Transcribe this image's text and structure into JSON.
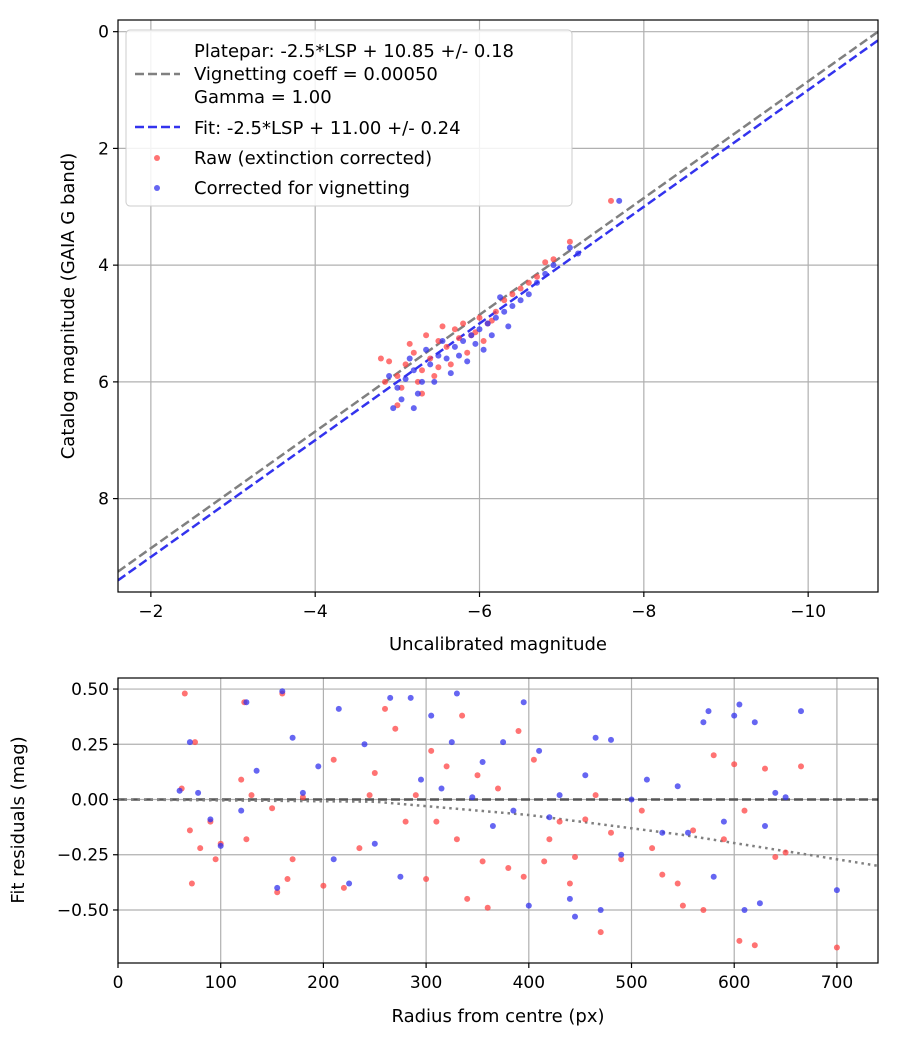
{
  "chart_data": [
    {
      "type": "scatter",
      "xlabel": "Uncalibrated magnitude",
      "ylabel": "Catalog magnitude (GAIA G band)",
      "xlim": [
        -1.6,
        -10.85
      ],
      "ylim": [
        9.6,
        -0.2
      ],
      "x_ticks": [
        -2,
        -4,
        -6,
        -8,
        -10
      ],
      "x_tick_labels": [
        "−2",
        "−4",
        "−6",
        "−8",
        "−10"
      ],
      "y_ticks": [
        0,
        2,
        4,
        6,
        8
      ],
      "y_tick_labels": [
        "0",
        "2",
        "4",
        "6",
        "8"
      ],
      "grid": true,
      "legend_position": "top-left",
      "lines": [
        {
          "name": "platepar",
          "style": "dashed",
          "color": "#808080",
          "slope": 1,
          "intercept": 10.85,
          "legend": [
            "Platepar: -2.5*LSP + 10.85 +/- 0.18",
            "Vignetting coeff = 0.00050",
            "Gamma = 1.00"
          ]
        },
        {
          "name": "fit",
          "style": "dashed",
          "color": "#3333ee",
          "slope": 1,
          "intercept": 11.0,
          "legend": [
            "Fit: -2.5*LSP + 11.00 +/- 0.24"
          ]
        }
      ],
      "series": [
        {
          "name": "Raw (extinction corrected)",
          "color": "#ff4444",
          "points": [
            [
              -4.8,
              5.6
            ],
            [
              -4.9,
              5.65
            ],
            [
              -5.0,
              5.9
            ],
            [
              -5.1,
              5.7
            ],
            [
              -5.2,
              5.5
            ],
            [
              -5.3,
              5.8
            ],
            [
              -5.4,
              5.6
            ],
            [
              -5.5,
              5.3
            ],
            [
              -5.6,
              5.4
            ],
            [
              -5.7,
              5.1
            ],
            [
              -5.8,
              5.0
            ],
            [
              -5.9,
              5.2
            ],
            [
              -6.0,
              4.9
            ],
            [
              -6.1,
              5.0
            ],
            [
              -6.2,
              4.8
            ],
            [
              -6.3,
              4.6
            ],
            [
              -6.5,
              4.4
            ],
            [
              -6.7,
              4.2
            ],
            [
              -6.9,
              3.9
            ],
            [
              -7.1,
              3.6
            ],
            [
              -7.6,
              2.9
            ],
            [
              -5.05,
              6.1
            ],
            [
              -5.25,
              6.0
            ],
            [
              -5.45,
              5.9
            ],
            [
              -5.65,
              5.7
            ],
            [
              -5.85,
              5.5
            ],
            [
              -6.05,
              5.3
            ],
            [
              -5.15,
              5.35
            ],
            [
              -5.35,
              5.2
            ],
            [
              -5.55,
              5.05
            ],
            [
              -6.4,
              4.5
            ],
            [
              -6.6,
              4.3
            ],
            [
              -6.8,
              3.95
            ],
            [
              -4.85,
              6.0
            ],
            [
              -5.75,
              5.25
            ],
            [
              -5.95,
              5.15
            ],
            [
              -6.15,
              4.95
            ],
            [
              -5.5,
              5.75
            ],
            [
              -5.3,
              6.2
            ],
            [
              -5.0,
              6.4
            ]
          ]
        },
        {
          "name": "Corrected for vignetting",
          "color": "#3333ee",
          "points": [
            [
              -4.9,
              5.9
            ],
            [
              -5.0,
              6.1
            ],
            [
              -5.1,
              5.95
            ],
            [
              -5.2,
              5.8
            ],
            [
              -5.3,
              6.0
            ],
            [
              -5.4,
              5.7
            ],
            [
              -5.5,
              5.55
            ],
            [
              -5.6,
              5.6
            ],
            [
              -5.7,
              5.4
            ],
            [
              -5.8,
              5.3
            ],
            [
              -5.9,
              5.2
            ],
            [
              -6.0,
              5.1
            ],
            [
              -6.1,
              5.0
            ],
            [
              -6.2,
              4.9
            ],
            [
              -6.3,
              4.8
            ],
            [
              -6.5,
              4.6
            ],
            [
              -6.7,
              4.3
            ],
            [
              -6.9,
              4.0
            ],
            [
              -7.1,
              3.7
            ],
            [
              -7.7,
              2.9
            ],
            [
              -5.05,
              6.3
            ],
            [
              -5.25,
              6.2
            ],
            [
              -5.45,
              6.0
            ],
            [
              -5.65,
              5.85
            ],
            [
              -5.85,
              5.65
            ],
            [
              -6.05,
              5.45
            ],
            [
              -5.15,
              5.6
            ],
            [
              -5.35,
              5.45
            ],
            [
              -5.55,
              5.3
            ],
            [
              -6.4,
              4.7
            ],
            [
              -6.6,
              4.5
            ],
            [
              -6.8,
              4.15
            ],
            [
              -4.95,
              6.45
            ],
            [
              -5.75,
              5.55
            ],
            [
              -5.95,
              5.35
            ],
            [
              -6.15,
              5.2
            ],
            [
              -6.35,
              5.05
            ],
            [
              -5.2,
              6.45
            ],
            [
              -7.2,
              3.8
            ],
            [
              -6.25,
              4.55
            ]
          ]
        }
      ]
    },
    {
      "type": "scatter",
      "xlabel": "Radius from centre (px)",
      "ylabel": "Fit residuals (mag)",
      "xlim": [
        0,
        740
      ],
      "ylim": [
        -0.74,
        0.55
      ],
      "x_ticks": [
        0,
        100,
        200,
        300,
        400,
        500,
        600,
        700
      ],
      "x_tick_labels": [
        "0",
        "100",
        "200",
        "300",
        "400",
        "500",
        "600",
        "700"
      ],
      "y_ticks": [
        0.5,
        0.25,
        0.0,
        -0.25,
        -0.5
      ],
      "y_tick_labels": [
        "0.50",
        "0.25",
        "0.00",
        "−0.25",
        "−0.50"
      ],
      "grid": true,
      "lines": [
        {
          "name": "zero",
          "style": "dashed",
          "color": "#555555",
          "points": [
            [
              0,
              0
            ],
            [
              740,
              0
            ]
          ]
        },
        {
          "name": "vignetting-model",
          "style": "dotted",
          "color": "#808080",
          "points": [
            [
              0,
              0
            ],
            [
              250,
              -0.01
            ],
            [
              400,
              -0.07
            ],
            [
              550,
              -0.16
            ],
            [
              740,
              -0.3
            ]
          ]
        }
      ],
      "series": [
        {
          "name": "Raw (extinction corrected)",
          "color": "#ff4444",
          "points": [
            [
              62,
              0.05
            ],
            [
              65,
              0.48
            ],
            [
              70,
              -0.14
            ],
            [
              72,
              -0.38
            ],
            [
              75,
              0.26
            ],
            [
              80,
              -0.22
            ],
            [
              90,
              -0.1
            ],
            [
              95,
              -0.27
            ],
            [
              100,
              -0.2
            ],
            [
              120,
              0.09
            ],
            [
              123,
              0.44
            ],
            [
              125,
              -0.18
            ],
            [
              130,
              0.02
            ],
            [
              150,
              -0.04
            ],
            [
              155,
              -0.42
            ],
            [
              160,
              0.48
            ],
            [
              165,
              -0.36
            ],
            [
              170,
              -0.27
            ],
            [
              180,
              0.01
            ],
            [
              200,
              -0.39
            ],
            [
              210,
              0.18
            ],
            [
              220,
              -0.4
            ],
            [
              235,
              -0.22
            ],
            [
              245,
              0.02
            ],
            [
              250,
              0.12
            ],
            [
              260,
              0.41
            ],
            [
              270,
              0.32
            ],
            [
              280,
              -0.1
            ],
            [
              290,
              0.02
            ],
            [
              300,
              -0.36
            ],
            [
              305,
              0.22
            ],
            [
              310,
              -0.1
            ],
            [
              320,
              0.15
            ],
            [
              330,
              -0.18
            ],
            [
              335,
              0.38
            ],
            [
              340,
              -0.45
            ],
            [
              350,
              0.11
            ],
            [
              355,
              -0.28
            ],
            [
              360,
              -0.49
            ],
            [
              370,
              0.05
            ],
            [
              380,
              -0.31
            ],
            [
              390,
              0.31
            ],
            [
              395,
              -0.35
            ],
            [
              405,
              0.18
            ],
            [
              415,
              -0.28
            ],
            [
              420,
              -0.18
            ],
            [
              430,
              -0.1
            ],
            [
              440,
              -0.38
            ],
            [
              445,
              -0.26
            ],
            [
              455,
              -0.09
            ],
            [
              465,
              0.02
            ],
            [
              470,
              -0.6
            ],
            [
              480,
              -0.15
            ],
            [
              490,
              -0.27
            ],
            [
              510,
              -0.05
            ],
            [
              520,
              -0.22
            ],
            [
              530,
              -0.34
            ],
            [
              545,
              -0.38
            ],
            [
              550,
              -0.48
            ],
            [
              560,
              -0.14
            ],
            [
              570,
              -0.5
            ],
            [
              580,
              0.2
            ],
            [
              590,
              -0.18
            ],
            [
              600,
              0.16
            ],
            [
              605,
              -0.64
            ],
            [
              610,
              -0.05
            ],
            [
              620,
              -0.66
            ],
            [
              630,
              0.14
            ],
            [
              640,
              -0.26
            ],
            [
              650,
              -0.24
            ],
            [
              665,
              0.15
            ],
            [
              700,
              -0.67
            ]
          ]
        },
        {
          "name": "Corrected for vignetting",
          "color": "#3333ee",
          "points": [
            [
              60,
              0.04
            ],
            [
              70,
              0.26
            ],
            [
              78,
              0.03
            ],
            [
              90,
              -0.09
            ],
            [
              100,
              -0.21
            ],
            [
              120,
              -0.05
            ],
            [
              125,
              0.44
            ],
            [
              135,
              0.13
            ],
            [
              155,
              -0.4
            ],
            [
              160,
              0.49
            ],
            [
              170,
              0.28
            ],
            [
              180,
              0.03
            ],
            [
              195,
              0.15
            ],
            [
              210,
              -0.27
            ],
            [
              215,
              0.41
            ],
            [
              225,
              -0.38
            ],
            [
              240,
              0.25
            ],
            [
              250,
              -0.2
            ],
            [
              265,
              0.46
            ],
            [
              275,
              -0.35
            ],
            [
              285,
              0.46
            ],
            [
              295,
              0.09
            ],
            [
              305,
              0.38
            ],
            [
              315,
              0.05
            ],
            [
              325,
              0.26
            ],
            [
              330,
              0.48
            ],
            [
              345,
              0.01
            ],
            [
              355,
              0.17
            ],
            [
              365,
              -0.12
            ],
            [
              375,
              0.26
            ],
            [
              385,
              -0.05
            ],
            [
              395,
              0.44
            ],
            [
              400,
              -0.48
            ],
            [
              410,
              0.22
            ],
            [
              420,
              -0.08
            ],
            [
              430,
              0.02
            ],
            [
              440,
              -0.45
            ],
            [
              445,
              -0.53
            ],
            [
              455,
              0.11
            ],
            [
              465,
              0.28
            ],
            [
              470,
              -0.5
            ],
            [
              480,
              0.27
            ],
            [
              490,
              -0.25
            ],
            [
              500,
              0.0
            ],
            [
              515,
              0.09
            ],
            [
              530,
              -0.15
            ],
            [
              545,
              0.06
            ],
            [
              555,
              -0.15
            ],
            [
              570,
              0.35
            ],
            [
              575,
              0.4
            ],
            [
              580,
              -0.35
            ],
            [
              590,
              -0.1
            ],
            [
              600,
              0.38
            ],
            [
              605,
              0.43
            ],
            [
              610,
              -0.5
            ],
            [
              620,
              0.35
            ],
            [
              625,
              -0.47
            ],
            [
              630,
              -0.12
            ],
            [
              640,
              0.03
            ],
            [
              650,
              0.01
            ],
            [
              665,
              0.4
            ],
            [
              700,
              -0.41
            ]
          ]
        }
      ]
    }
  ]
}
